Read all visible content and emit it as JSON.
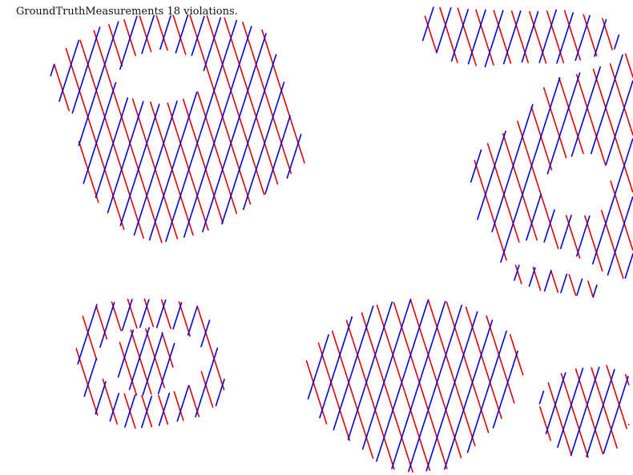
{
  "title": "GroundTruthMeasurements 18 violations.",
  "colors": {
    "red": "#e00000",
    "blue": "#0000dd",
    "background": "#ffffff"
  }
}
